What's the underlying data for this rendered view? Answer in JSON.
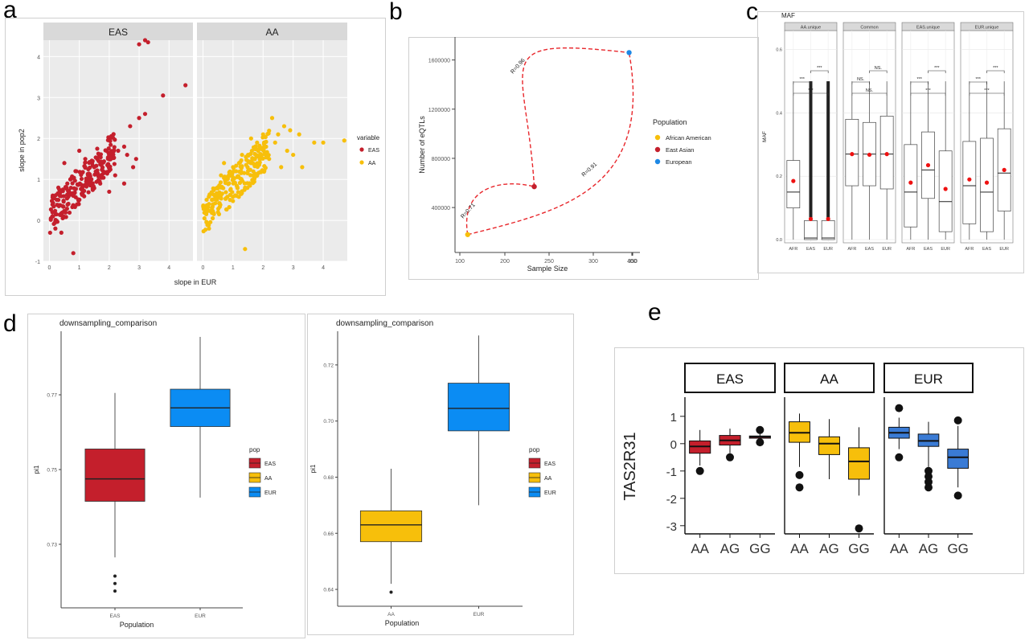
{
  "panel_letters": [
    "a",
    "b",
    "c",
    "d",
    "e"
  ],
  "colors": {
    "EAS": "#c41f2c",
    "AA": "#f7bf0b",
    "EUR": "#0b8cf3",
    "EUR_e": "#3a7bd5",
    "European": "#1e88e5",
    "ggplot_bg": "#ebebeb",
    "strip_bg": "#d9d9d9",
    "grid": "#ffffff",
    "mean_point": "#ee1111",
    "dashed_line": "#e8262b"
  },
  "chart_data": [
    {
      "id": "a",
      "type": "scatter",
      "facets": [
        "EAS",
        "AA"
      ],
      "xlabel": "slope in EUR",
      "ylabel": "slope in pop2",
      "xlim": [
        -0.2,
        4.8
      ],
      "ylim": [
        -1,
        4.4
      ],
      "xticks": [
        "0",
        "1",
        "2",
        "3",
        "4"
      ],
      "yticks": [
        "-1",
        "0",
        "1",
        "2",
        "3",
        "4"
      ],
      "legend": {
        "title": "variable",
        "entries": [
          "EAS",
          "AA"
        ]
      },
      "series": [
        {
          "name": "EAS",
          "color": "EAS",
          "points": [
            [
              3.0,
              4.3
            ],
            [
              3.2,
              4.4
            ],
            [
              3.3,
              4.35
            ],
            [
              4.55,
              3.3
            ],
            [
              3.8,
              3.05
            ],
            [
              3.2,
              2.6
            ],
            [
              3.0,
              2.5
            ],
            [
              2.7,
              2.3
            ],
            [
              2.5,
              1.8
            ],
            [
              2.6,
              1.6
            ],
            [
              2.9,
              1.5
            ],
            [
              2.3,
              1.7
            ],
            [
              1.6,
              1.75
            ],
            [
              2.0,
              1.6
            ],
            [
              1.0,
              1.7
            ],
            [
              1.2,
              1.5
            ],
            [
              1.5,
              1.3
            ],
            [
              1.8,
              1.2
            ],
            [
              2.2,
              1.1
            ],
            [
              2.5,
              0.9
            ],
            [
              1.4,
              1.0
            ],
            [
              0.9,
              1.2
            ],
            [
              0.6,
              0.9
            ],
            [
              0.3,
              0.5
            ],
            [
              0.8,
              0.6
            ],
            [
              1.1,
              0.8
            ],
            [
              0.2,
              -0.2
            ],
            [
              0.4,
              -0.3
            ],
            [
              0.8,
              -0.8
            ],
            [
              1.3,
              1.25
            ],
            [
              1.7,
              0.9
            ],
            [
              2.0,
              0.7
            ],
            [
              0.5,
              1.4
            ],
            [
              0.1,
              0.2
            ],
            [
              0.05,
              0.05
            ],
            [
              0.7,
              1.0
            ],
            [
              1.0,
              0.5
            ],
            [
              0.3,
              0.8
            ],
            [
              1.6,
              1.5
            ],
            [
              2.8,
              1.3
            ]
          ]
        },
        {
          "name": "AA",
          "color": "AA",
          "points": [
            [
              4.0,
              1.9
            ],
            [
              4.7,
              1.95
            ],
            [
              3.7,
              1.9
            ],
            [
              3.3,
              1.3
            ],
            [
              3.0,
              1.6
            ],
            [
              2.8,
              1.7
            ],
            [
              2.5,
              2.1
            ],
            [
              2.3,
              2.5
            ],
            [
              2.0,
              2.1
            ],
            [
              1.8,
              1.9
            ],
            [
              1.5,
              1.6
            ],
            [
              1.2,
              1.4
            ],
            [
              1.0,
              1.3
            ],
            [
              0.8,
              1.0
            ],
            [
              0.6,
              0.8
            ],
            [
              0.4,
              0.6
            ],
            [
              0.2,
              0.4
            ],
            [
              0.1,
              0.2
            ],
            [
              0.05,
              0.05
            ],
            [
              0.3,
              0.5
            ],
            [
              1.1,
              1.2
            ],
            [
              2.2,
              1.5
            ],
            [
              2.6,
              1.3
            ],
            [
              1.4,
              0.8
            ],
            [
              0.9,
              0.5
            ],
            [
              0.5,
              0.2
            ],
            [
              0.2,
              -0.2
            ],
            [
              1.4,
              -0.7
            ],
            [
              0.7,
              1.4
            ],
            [
              1.6,
              2.0
            ],
            [
              2.9,
              2.2
            ],
            [
              2.4,
              1.9
            ],
            [
              1.9,
              1.5
            ],
            [
              1.7,
              1.1
            ],
            [
              0.3,
              0.3
            ],
            [
              2.1,
              1.8
            ],
            [
              1.3,
              1.6
            ],
            [
              0.6,
              1.1
            ],
            [
              2.7,
              2.3
            ],
            [
              3.2,
              2.1
            ]
          ]
        }
      ]
    },
    {
      "id": "b",
      "type": "scatter",
      "xlabel": "Sample Size",
      "ylabel": "Number of eQTLs",
      "xlim": [
        100,
        400
      ],
      "ylim": [
        100000,
        1800000
      ],
      "xticks": [
        "100",
        "200",
        "250",
        "300",
        "350",
        "400"
      ],
      "yticks": [
        "400000",
        "800000",
        "1200000",
        "1600000"
      ],
      "legend": {
        "title": "Population",
        "entries": [
          "African American",
          "East Asian",
          "European"
        ]
      },
      "points": [
        {
          "name": "African American",
          "x": 104,
          "y": 180000,
          "color": "AA"
        },
        {
          "name": "East Asian",
          "x": 224,
          "y": 570000,
          "color": "EAS"
        },
        {
          "name": "European",
          "x": 395,
          "y": 1660000,
          "color": "European"
        }
      ],
      "annotations": [
        "R=0.96",
        "R=0.71",
        "R=0.91"
      ]
    },
    {
      "id": "c",
      "type": "boxplot",
      "title": "MAF",
      "ylabel": "MAF",
      "ylim": [
        0,
        0.65
      ],
      "yticks": [
        "0.0",
        "0.2",
        "0.4",
        "0.6"
      ],
      "facets": [
        "AA.unique",
        "Common",
        "EAS.unique",
        "EUR.unique"
      ],
      "categories": [
        "AFR",
        "EAS",
        "EUR"
      ],
      "significance": [
        [
          "***",
          "***",
          "***"
        ],
        [
          "NS.",
          "NS.",
          "NS."
        ],
        [
          "***",
          "***",
          "***"
        ],
        [
          "***",
          "***",
          "***"
        ]
      ],
      "boxes": [
        [
          {
            "lo": 0.0,
            "q1": 0.1,
            "med": 0.15,
            "q3": 0.25,
            "hi": 0.5,
            "mean": 0.185
          },
          {
            "lo": 0.0,
            "q1": 0.0,
            "med": 0.005,
            "q3": 0.06,
            "hi": 0.5,
            "mean": 0.065,
            "dense_outliers": true
          },
          {
            "lo": 0.0,
            "q1": 0.0,
            "med": 0.005,
            "q3": 0.06,
            "hi": 0.5,
            "mean": 0.065,
            "dense_outliers": true
          }
        ],
        [
          {
            "lo": 0.0,
            "q1": 0.17,
            "med": 0.27,
            "q3": 0.38,
            "hi": 0.5,
            "mean": 0.27
          },
          {
            "lo": 0.0,
            "q1": 0.17,
            "med": 0.27,
            "q3": 0.37,
            "hi": 0.5,
            "mean": 0.268
          },
          {
            "lo": 0.0,
            "q1": 0.16,
            "med": 0.27,
            "q3": 0.39,
            "hi": 0.5,
            "mean": 0.27
          }
        ],
        [
          {
            "lo": 0.0,
            "q1": 0.04,
            "med": 0.15,
            "q3": 0.3,
            "hi": 0.5,
            "mean": 0.18
          },
          {
            "lo": 0.0,
            "q1": 0.13,
            "med": 0.22,
            "q3": 0.34,
            "hi": 0.5,
            "mean": 0.235
          },
          {
            "lo": 0.0,
            "q1": 0.025,
            "med": 0.12,
            "q3": 0.28,
            "hi": 0.5,
            "mean": 0.16
          }
        ],
        [
          {
            "lo": 0.0,
            "q1": 0.05,
            "med": 0.17,
            "q3": 0.31,
            "hi": 0.5,
            "mean": 0.19
          },
          {
            "lo": 0.0,
            "q1": 0.025,
            "med": 0.15,
            "q3": 0.32,
            "hi": 0.5,
            "mean": 0.18
          },
          {
            "lo": 0.0,
            "q1": 0.09,
            "med": 0.21,
            "q3": 0.35,
            "hi": 0.5,
            "mean": 0.22
          }
        ]
      ]
    },
    {
      "id": "d1",
      "type": "boxplot",
      "title": "downsampling_comparison",
      "xlabel": "Population",
      "ylabel": "pi1",
      "ylim": [
        0.713,
        0.787
      ],
      "yticks": [
        "0.73",
        "0.75",
        "0.77"
      ],
      "categories": [
        "EAS",
        "EUR"
      ],
      "boxes": [
        {
          "name": "EAS",
          "color": "EAS",
          "lo": 0.7265,
          "q1": 0.7415,
          "med": 0.7475,
          "q3": 0.7555,
          "hi": 0.7705,
          "outliers": [
            0.7175,
            0.7195,
            0.7215
          ]
        },
        {
          "name": "EUR",
          "color": "EUR",
          "lo": 0.7425,
          "q1": 0.7615,
          "med": 0.7665,
          "q3": 0.7715,
          "hi": 0.7855,
          "outliers": []
        }
      ],
      "legend": {
        "title": "pop",
        "entries": [
          "EAS",
          "AA",
          "EUR"
        ]
      }
    },
    {
      "id": "d2",
      "type": "boxplot",
      "title": "downsampling_comparison",
      "xlabel": "Population",
      "ylabel": "pi1",
      "ylim": [
        0.634,
        0.732
      ],
      "yticks": [
        "0.64",
        "0.66",
        "0.68",
        "0.70",
        "0.72"
      ],
      "categories": [
        "AA",
        "EUR"
      ],
      "boxes": [
        {
          "name": "AA",
          "color": "AA",
          "lo": 0.642,
          "q1": 0.657,
          "med": 0.663,
          "q3": 0.668,
          "hi": 0.683,
          "outliers": [
            0.639
          ]
        },
        {
          "name": "EUR",
          "color": "EUR",
          "lo": 0.67,
          "q1": 0.6965,
          "med": 0.7045,
          "q3": 0.7135,
          "hi": 0.7305,
          "outliers": []
        }
      ],
      "legend": {
        "title": "pop",
        "entries": [
          "EAS",
          "AA",
          "EUR"
        ]
      }
    },
    {
      "id": "e",
      "type": "boxplot",
      "ylabel": "TAS2R31",
      "ylim": [
        -3.3,
        1.7
      ],
      "yticks": [
        "1",
        "0",
        "-1",
        "-2",
        "-3"
      ],
      "facets": [
        "EAS",
        "AA",
        "EUR"
      ],
      "categories": [
        "AA",
        "AG",
        "GG"
      ],
      "boxes": [
        [
          {
            "lo": -0.8,
            "q1": -0.35,
            "med": -0.1,
            "q3": 0.1,
            "hi": 0.5,
            "outliers": [
              -1.0
            ]
          },
          {
            "lo": -0.35,
            "q1": -0.05,
            "med": 0.12,
            "q3": 0.3,
            "hi": 0.55,
            "outliers": [
              -0.5
            ]
          },
          {
            "lo": 0.05,
            "q1": 0.2,
            "med": 0.25,
            "q3": 0.28,
            "hi": 0.45,
            "outliers": [
              0.5,
              0.05
            ]
          }
        ],
        [
          {
            "lo": -0.85,
            "q1": 0.05,
            "med": 0.4,
            "q3": 0.8,
            "hi": 1.1,
            "outliers": [
              -1.15,
              -1.6
            ]
          },
          {
            "lo": -1.3,
            "q1": -0.4,
            "med": 0.0,
            "q3": 0.25,
            "hi": 0.9,
            "outliers": []
          },
          {
            "lo": -1.9,
            "q1": -1.3,
            "med": -0.65,
            "q3": -0.15,
            "hi": 0.6,
            "outliers": [
              -3.1
            ]
          }
        ],
        [
          {
            "lo": -0.2,
            "q1": 0.2,
            "med": 0.4,
            "q3": 0.6,
            "hi": 0.95,
            "outliers": [
              1.3,
              -0.5
            ]
          },
          {
            "lo": -0.85,
            "q1": -0.1,
            "med": 0.1,
            "q3": 0.35,
            "hi": 0.8,
            "outliers": [
              -1.0,
              -1.2,
              -1.4,
              -1.6
            ]
          },
          {
            "lo": -1.6,
            "q1": -0.9,
            "med": -0.5,
            "q3": -0.2,
            "hi": 0.65,
            "outliers": [
              0.85,
              -1.9
            ]
          }
        ]
      ]
    }
  ]
}
